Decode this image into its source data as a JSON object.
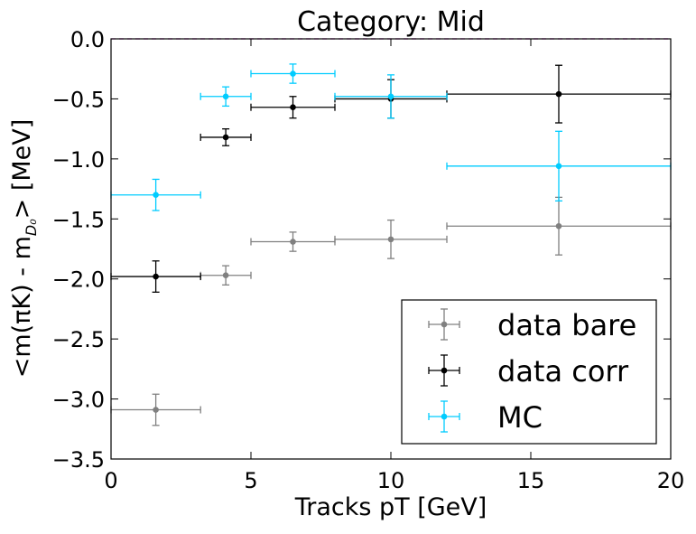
{
  "chart_data": {
    "type": "scatter",
    "title": "Category: Mid",
    "xlabel": "Tracks pT [GeV]",
    "ylabel": "<m(πK) - m",
    "ylabel_sub": "D₀",
    "ylabel_tail": "> [MeV]",
    "xlim": [
      0,
      20
    ],
    "ylim": [
      -3.5,
      0.0
    ],
    "xticks": [
      0,
      5,
      10,
      15,
      20
    ],
    "xtick_labels": [
      "0",
      "5",
      "10",
      "15",
      "20"
    ],
    "yticks": [
      0.0,
      -0.5,
      -1.0,
      -1.5,
      -2.0,
      -2.5,
      -3.0,
      -3.5
    ],
    "ytick_labels": [
      "0.0",
      "−0.5",
      "−1.0",
      "−1.5",
      "−2.0",
      "−2.5",
      "−3.0",
      "−3.5"
    ],
    "grid": false,
    "reference_line": {
      "y": 0.0,
      "style": "dashed",
      "color": "#cc00cc"
    },
    "legend_position": "lower-right",
    "series": [
      {
        "name": "data bare",
        "color": "#808080",
        "points": [
          {
            "x": 1.6,
            "xlo": 0.0,
            "xhi": 3.2,
            "y": -3.09,
            "yerr": 0.13
          },
          {
            "x": 4.1,
            "xlo": 3.2,
            "xhi": 5.0,
            "y": -1.97,
            "yerr": 0.08
          },
          {
            "x": 6.5,
            "xlo": 5.0,
            "xhi": 8.0,
            "y": -1.69,
            "yerr": 0.08
          },
          {
            "x": 10.0,
            "xlo": 8.0,
            "xhi": 12.0,
            "y": -1.67,
            "yerr": 0.16
          },
          {
            "x": 16.0,
            "xlo": 12.0,
            "xhi": 20.0,
            "y": -1.56,
            "yerr": 0.24
          }
        ]
      },
      {
        "name": "data corr",
        "color": "#000000",
        "points": [
          {
            "x": 1.6,
            "xlo": 0.0,
            "xhi": 3.2,
            "y": -1.98,
            "yerr": 0.13
          },
          {
            "x": 4.1,
            "xlo": 3.2,
            "xhi": 5.0,
            "y": -0.82,
            "yerr": 0.07
          },
          {
            "x": 6.5,
            "xlo": 5.0,
            "xhi": 8.0,
            "y": -0.57,
            "yerr": 0.09
          },
          {
            "x": 10.0,
            "xlo": 8.0,
            "xhi": 12.0,
            "y": -0.5,
            "yerr": 0.16
          },
          {
            "x": 16.0,
            "xlo": 12.0,
            "xhi": 20.0,
            "y": -0.46,
            "yerr": 0.24
          }
        ]
      },
      {
        "name": "MC",
        "color": "#00ccff",
        "points": [
          {
            "x": 1.6,
            "xlo": 0.0,
            "xhi": 3.2,
            "y": -1.3,
            "yerr": 0.13
          },
          {
            "x": 4.1,
            "xlo": 3.2,
            "xhi": 5.0,
            "y": -0.48,
            "yerr": 0.08
          },
          {
            "x": 6.5,
            "xlo": 5.0,
            "xhi": 8.0,
            "y": -0.29,
            "yerr": 0.08
          },
          {
            "x": 10.0,
            "xlo": 8.0,
            "xhi": 12.0,
            "y": -0.48,
            "yerr": 0.18
          },
          {
            "x": 16.0,
            "xlo": 12.0,
            "xhi": 20.0,
            "y": -1.06,
            "yerr": 0.29
          }
        ]
      }
    ]
  }
}
